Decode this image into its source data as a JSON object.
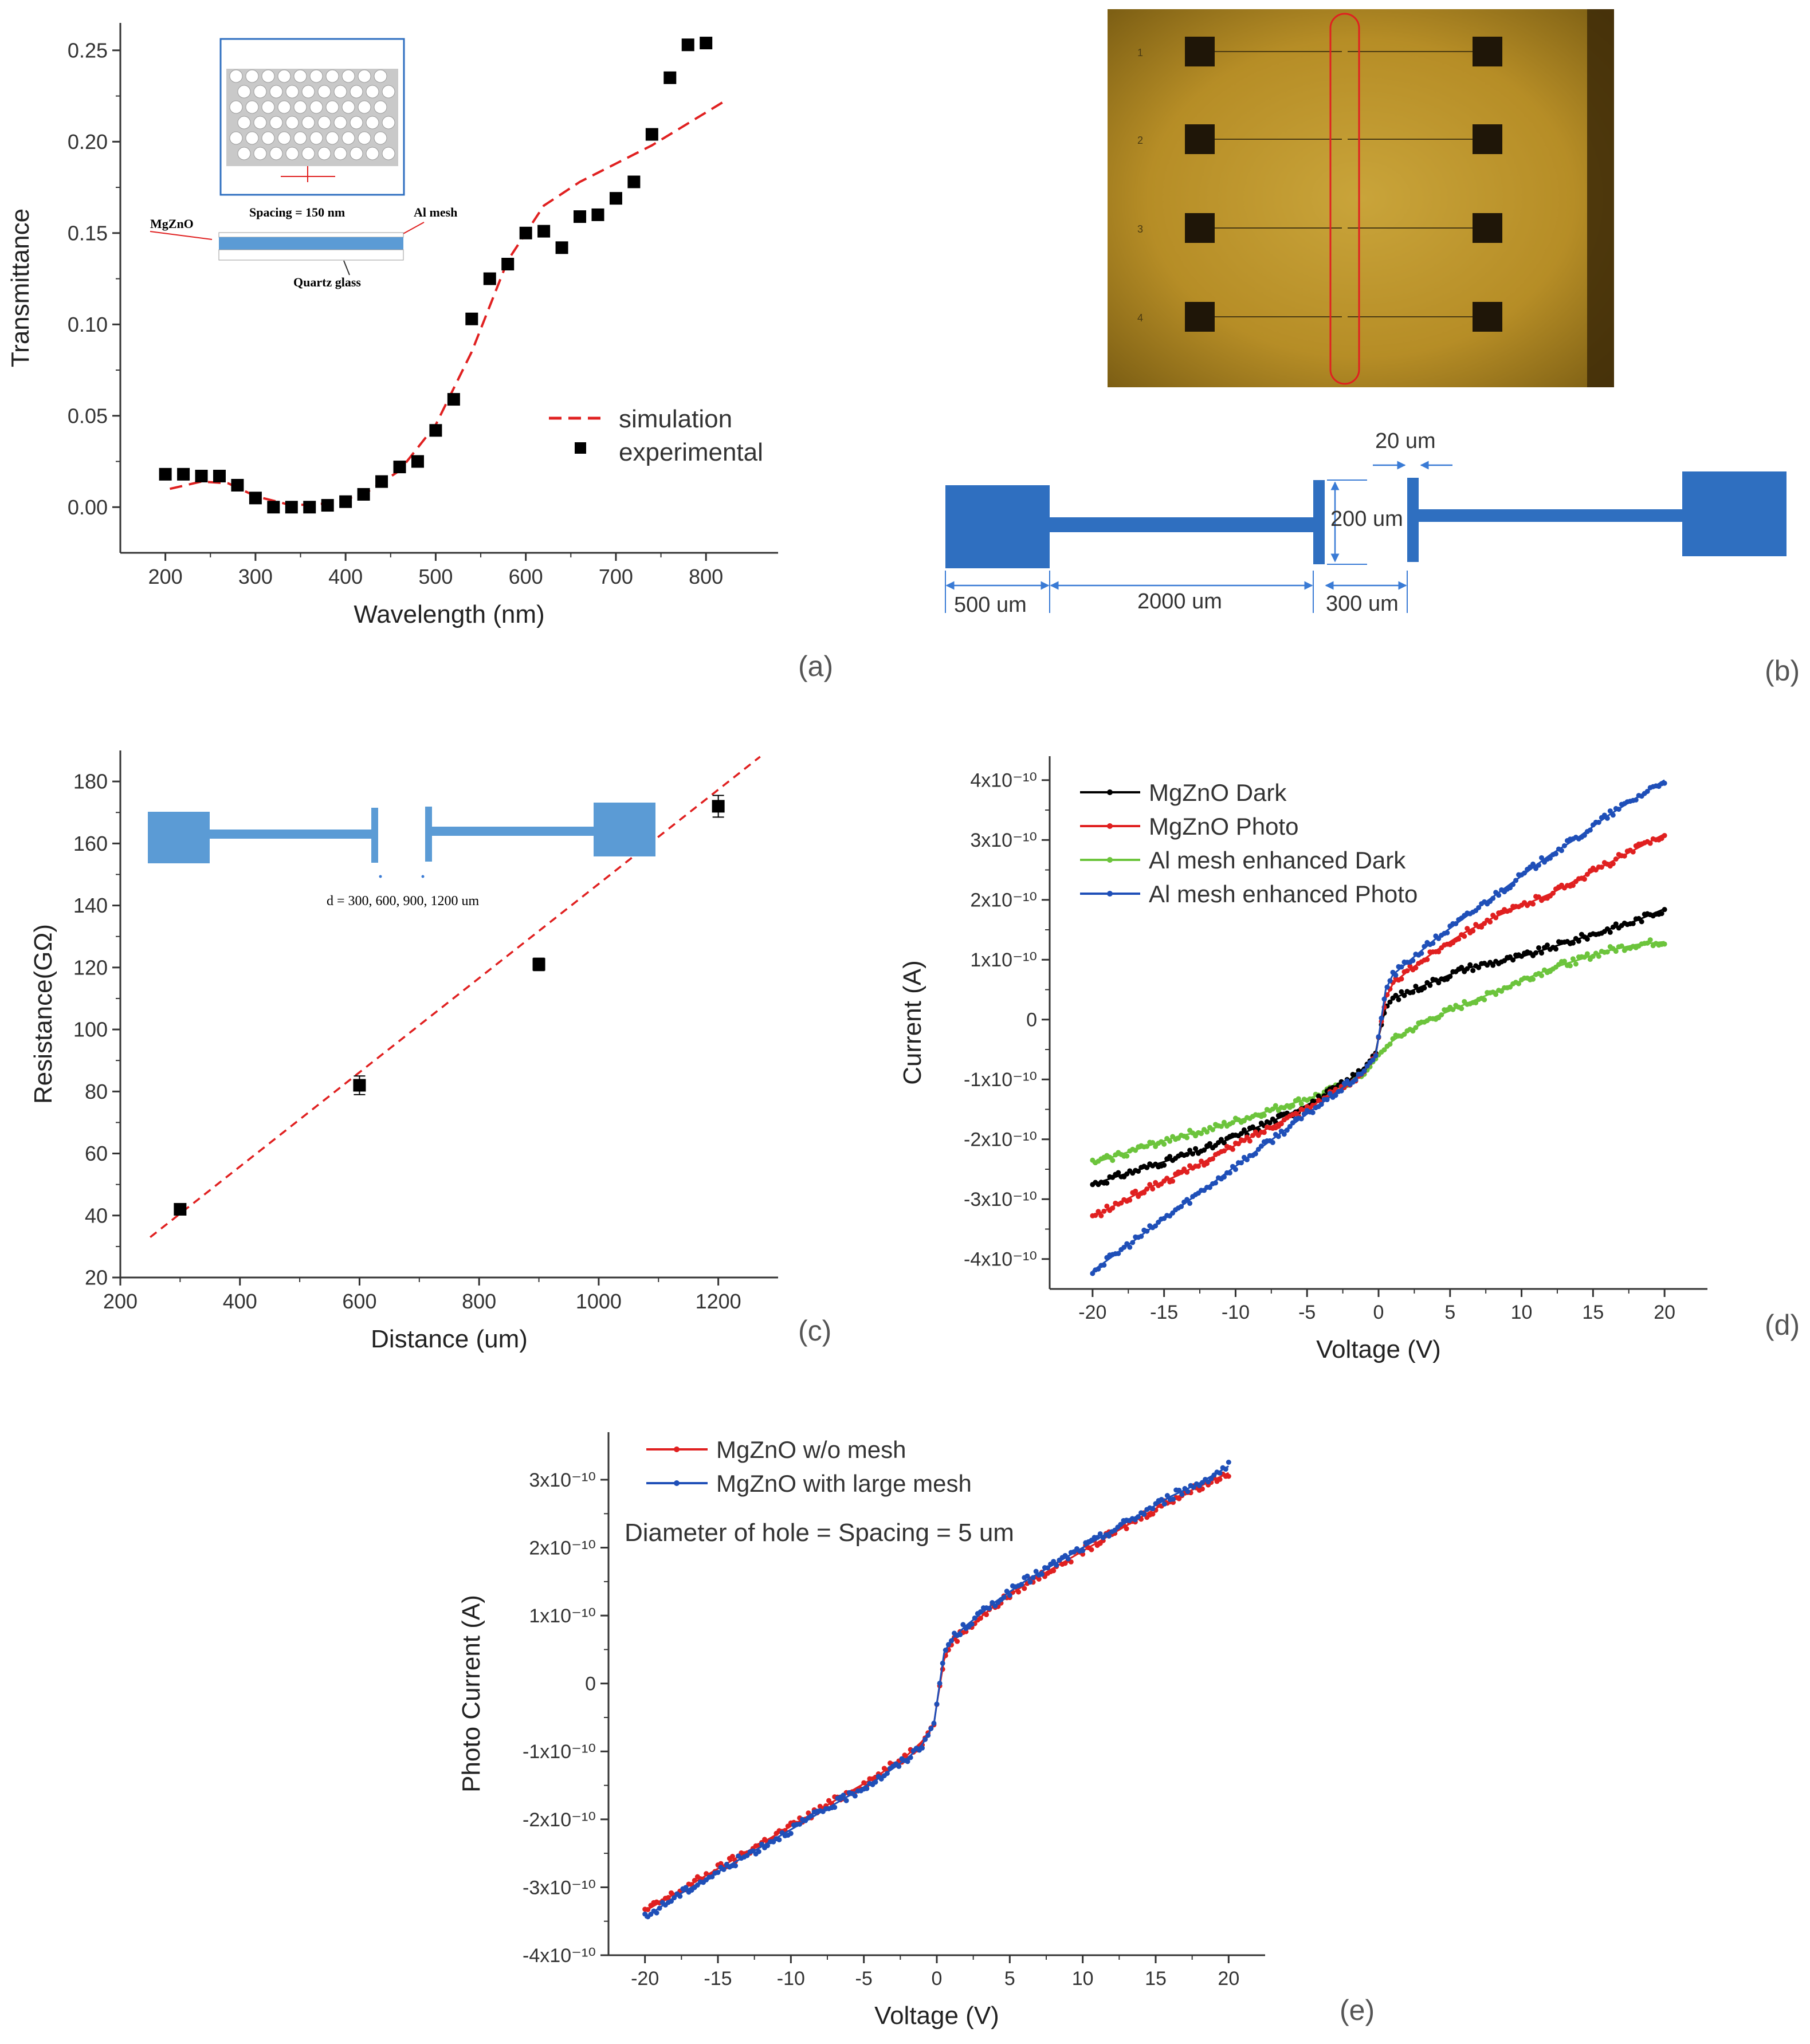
{
  "panel_labels": {
    "a": "(a)",
    "b": "(b)",
    "c": "(c)",
    "d": "(d)",
    "e": "(e)"
  },
  "colors": {
    "black": "#000000",
    "red": "#e02020",
    "green": "#6cc43c",
    "blue": "#1f4fb8",
    "schematic_blue": "#2f6fc0",
    "inset_blue": "#5b9bd5"
  },
  "panel_a": {
    "inset": {
      "spacing_label": "Spacing = 150 nm",
      "mgzno_label": "MgZnO",
      "mesh_label": "Al mesh",
      "quartz_label": "Quartz glass"
    }
  },
  "panel_b": {
    "photo_row_labels": [
      "1",
      "2",
      "3",
      "4"
    ],
    "dimensions": {
      "gap_width": "20 um",
      "height": "200 um",
      "pad": "500 um",
      "line": "2000 um",
      "gap": "300 um"
    }
  },
  "panel_c": {
    "inset_label": "d = 300, 600, 900, 1200 um"
  },
  "panel_e": {
    "annotation": "Diameter of hole = Spacing = 5 um"
  },
  "chart_data": [
    {
      "id": "a",
      "type": "scatter",
      "xlabel": "Wavelength (nm)",
      "ylabel": "Transmittance",
      "xlim": [
        150,
        880
      ],
      "ylim": [
        -0.025,
        0.265
      ],
      "xticks": [
        200,
        300,
        400,
        500,
        600,
        700,
        800
      ],
      "yticks": [
        0.0,
        0.05,
        0.1,
        0.15,
        0.2,
        0.25
      ],
      "xtick_labels": [
        "200",
        "300",
        "400",
        "500",
        "600",
        "700",
        "800"
      ],
      "ytick_labels": [
        "0.00",
        "0.05",
        "0.10",
        "0.15",
        "0.20",
        "0.25"
      ],
      "legend_position": "bottom-right",
      "series": [
        {
          "name": "simulation",
          "style": "dashed-line",
          "color": "#e02020",
          "x": [
            205,
            240,
            270,
            300,
            340,
            380,
            420,
            460,
            500,
            540,
            580,
            620,
            660,
            700,
            740,
            780,
            820
          ],
          "y": [
            0.01,
            0.014,
            0.013,
            0.006,
            0.001,
            0.002,
            0.007,
            0.02,
            0.045,
            0.085,
            0.135,
            0.165,
            0.178,
            0.188,
            0.198,
            0.21,
            0.222
          ]
        },
        {
          "name": "experimental",
          "style": "square-marker",
          "color": "#000000",
          "x": [
            200,
            220,
            240,
            260,
            280,
            300,
            320,
            340,
            360,
            380,
            400,
            420,
            440,
            460,
            480,
            500,
            520,
            540,
            560,
            580,
            600,
            620,
            640,
            660,
            680,
            700,
            720,
            740,
            760,
            780,
            800
          ],
          "y": [
            0.018,
            0.018,
            0.017,
            0.017,
            0.012,
            0.005,
            0.0,
            0.0,
            0.0,
            0.001,
            0.003,
            0.007,
            0.014,
            0.022,
            0.025,
            0.042,
            0.059,
            0.103,
            0.125,
            0.133,
            0.15,
            0.151,
            0.142,
            0.159,
            0.16,
            0.169,
            0.178,
            0.204,
            0.235,
            0.253,
            0.254
          ]
        }
      ]
    },
    {
      "id": "c",
      "type": "scatter",
      "xlabel": "Distance (um)",
      "ylabel": "Resistance(GΩ)",
      "xlim": [
        200,
        1300
      ],
      "ylim": [
        20,
        190
      ],
      "xticks": [
        200,
        400,
        600,
        800,
        1000,
        1200
      ],
      "yticks": [
        20,
        40,
        60,
        80,
        100,
        120,
        140,
        160,
        180
      ],
      "xtick_labels": [
        "200",
        "400",
        "600",
        "800",
        "1000",
        "1200"
      ],
      "ytick_labels": [
        "20",
        "40",
        "60",
        "80",
        "100",
        "120",
        "140",
        "160",
        "180"
      ],
      "series": [
        {
          "style": "square-marker",
          "color": "#000000",
          "x": [
            300,
            600,
            900,
            1200
          ],
          "y": [
            42,
            82,
            121,
            172
          ],
          "err": [
            1.5,
            3,
            2,
            3.5
          ]
        },
        {
          "style": "dashed-line",
          "color": "#e02020",
          "x": [
            250,
            1270
          ],
          "y": [
            33,
            188
          ]
        }
      ]
    },
    {
      "id": "d",
      "type": "line",
      "xlabel": "Voltage (V)",
      "ylabel": "Current (A)",
      "xlim": [
        -23,
        23
      ],
      "ylim": [
        -4.5,
        4.4
      ],
      "xticks": [
        -20,
        -15,
        -10,
        -5,
        0,
        5,
        10,
        15,
        20
      ],
      "yticks": [
        -4,
        -3,
        -2,
        -1,
        0,
        1,
        2,
        3,
        4
      ],
      "xtick_labels": [
        "-20",
        "-15",
        "-10",
        "-5",
        "0",
        "5",
        "10",
        "15",
        "20"
      ],
      "ytick_labels": [
        "-4x10⁻¹⁰",
        "-3x10⁻¹⁰",
        "-2x10⁻¹⁰",
        "-1x10⁻¹⁰",
        "0",
        "1x10⁻¹⁰",
        "2x10⁻¹⁰",
        "3x10⁻¹⁰",
        "4x10⁻¹⁰"
      ],
      "y_unit_scale": "1e-10",
      "legend_position": "top-left",
      "series": [
        {
          "name": "MgZnO Dark",
          "color": "#000000",
          "x": [
            -20,
            -18,
            -16,
            -14,
            -12,
            -10,
            -8,
            -6,
            -4,
            -2,
            -1,
            -0.2,
            0,
            0.5,
            1,
            2,
            4,
            6,
            8,
            10,
            12,
            14,
            16,
            18,
            20
          ],
          "y": [
            -2.75,
            -2.6,
            -2.45,
            -2.3,
            -2.15,
            -1.95,
            -1.75,
            -1.55,
            -1.3,
            -1.0,
            -0.8,
            -0.55,
            -0.3,
            0.2,
            0.35,
            0.45,
            0.65,
            0.85,
            0.95,
            1.05,
            1.2,
            1.35,
            1.5,
            1.65,
            1.85
          ]
        },
        {
          "name": "MgZnO Photo",
          "color": "#e02020",
          "x": [
            -20,
            -18,
            -16,
            -14,
            -12,
            -10,
            -8,
            -6,
            -4,
            -2,
            -1,
            -0.2,
            0,
            0.5,
            1,
            2,
            4,
            6,
            8,
            10,
            12,
            14,
            16,
            18,
            20
          ],
          "y": [
            -3.3,
            -3.05,
            -2.8,
            -2.6,
            -2.35,
            -2.1,
            -1.85,
            -1.6,
            -1.35,
            -1.05,
            -0.85,
            -0.6,
            -0.3,
            0.35,
            0.6,
            0.8,
            1.15,
            1.45,
            1.7,
            1.9,
            2.1,
            2.35,
            2.6,
            2.85,
            3.1
          ]
        },
        {
          "name": "Al mesh enhanced Dark",
          "color": "#6cc43c",
          "x": [
            -20,
            -18,
            -16,
            -14,
            -12,
            -10,
            -8,
            -6,
            -4,
            -2,
            -1,
            0,
            1,
            2,
            4,
            6,
            8,
            10,
            12,
            14,
            16,
            18,
            20
          ],
          "y": [
            -2.4,
            -2.25,
            -2.1,
            -1.95,
            -1.85,
            -1.7,
            -1.55,
            -1.4,
            -1.25,
            -1.05,
            -0.9,
            -0.6,
            -0.35,
            -0.2,
            0.05,
            0.25,
            0.45,
            0.65,
            0.85,
            1.0,
            1.15,
            1.25,
            1.3
          ]
        },
        {
          "name": "Al mesh enhanced Photo",
          "color": "#1f4fb8",
          "x": [
            -20,
            -18,
            -16,
            -14,
            -12,
            -10,
            -8,
            -6,
            -4,
            -2,
            -1,
            -0.2,
            0,
            0.5,
            1,
            2,
            4,
            6,
            8,
            10,
            12,
            14,
            16,
            18,
            20
          ],
          "y": [
            -4.2,
            -3.85,
            -3.5,
            -3.15,
            -2.8,
            -2.45,
            -2.1,
            -1.75,
            -1.4,
            -1.05,
            -0.85,
            -0.6,
            -0.3,
            0.5,
            0.75,
            0.95,
            1.35,
            1.7,
            2.05,
            2.4,
            2.75,
            3.05,
            3.4,
            3.7,
            4.0
          ]
        }
      ]
    },
    {
      "id": "e",
      "type": "line",
      "xlabel": "Voltage (V)",
      "ylabel": "Photo Current (A)",
      "xlim": [
        -22.5,
        22.5
      ],
      "ylim": [
        -4,
        3.7
      ],
      "xticks": [
        -20,
        -15,
        -10,
        -5,
        0,
        5,
        10,
        15,
        20
      ],
      "yticks": [
        -4,
        -3,
        -2,
        -1,
        0,
        1,
        2,
        3
      ],
      "xtick_labels": [
        "-20",
        "-15",
        "-10",
        "-5",
        "0",
        "5",
        "10",
        "15",
        "20"
      ],
      "ytick_labels": [
        "-4x10⁻¹⁰",
        "-3x10⁻¹⁰",
        "-2x10⁻¹⁰",
        "-1x10⁻¹⁰",
        "0",
        "1x10⁻¹⁰",
        "2x10⁻¹⁰",
        "3x10⁻¹⁰"
      ],
      "y_unit_scale": "1e-10",
      "legend_position": "top-left",
      "series": [
        {
          "name": "MgZnO w/o mesh",
          "color": "#e02020",
          "x": [
            -20,
            -18,
            -16,
            -14,
            -12,
            -10,
            -8,
            -6,
            -4,
            -2,
            -1,
            -0.2,
            0,
            0.5,
            1,
            2,
            4,
            6,
            8,
            10,
            12,
            14,
            16,
            18,
            20
          ],
          "y": [
            -3.35,
            -3.1,
            -2.85,
            -2.6,
            -2.35,
            -2.1,
            -1.85,
            -1.6,
            -1.35,
            -1.05,
            -0.85,
            -0.6,
            -0.3,
            0.35,
            0.6,
            0.8,
            1.15,
            1.45,
            1.7,
            1.95,
            2.2,
            2.45,
            2.7,
            2.9,
            3.1
          ]
        },
        {
          "name": "MgZnO with large mesh",
          "color": "#1f4fb8",
          "x": [
            -20,
            -18,
            -16,
            -14,
            -12,
            -10,
            -8,
            -6,
            -4,
            -2,
            -1,
            -0.2,
            0,
            0.5,
            1,
            2,
            4,
            6,
            8,
            10,
            12,
            14,
            16,
            18,
            20
          ],
          "y": [
            -3.45,
            -3.15,
            -2.9,
            -2.65,
            -2.4,
            -2.15,
            -1.9,
            -1.65,
            -1.4,
            -1.1,
            -0.9,
            -0.6,
            -0.3,
            0.45,
            0.65,
            0.85,
            1.2,
            1.5,
            1.75,
            2.0,
            2.25,
            2.5,
            2.75,
            2.95,
            3.2
          ]
        }
      ]
    }
  ]
}
